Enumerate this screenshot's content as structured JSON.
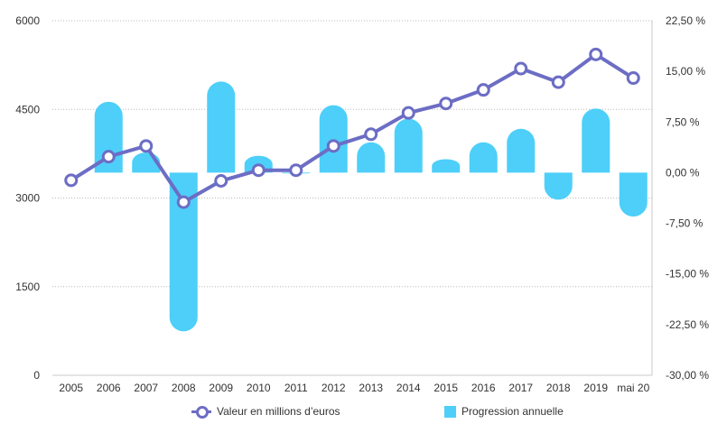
{
  "chart_data": {
    "type": "bar+line",
    "categories": [
      "2005",
      "2006",
      "2007",
      "2008",
      "2009",
      "2010",
      "2011",
      "2012",
      "2013",
      "2014",
      "2015",
      "2016",
      "2017",
      "2018",
      "2019",
      "mai 20"
    ],
    "series": [
      {
        "name": "Valeur en millions d’euros",
        "type": "line",
        "axis": "left",
        "color": "#6c6dc4",
        "values": [
          3300,
          3700,
          3880,
          2930,
          3290,
          3470,
          3470,
          3880,
          4080,
          4440,
          4600,
          4830,
          5190,
          4960,
          5430,
          5030
        ]
      },
      {
        "name": "Progression annuelle",
        "type": "bar",
        "axis": "right",
        "color": "#4dcff9",
        "values": [
          0,
          10.5,
          3.0,
          -23.5,
          13.5,
          2.5,
          -0.1,
          10.0,
          4.5,
          8.0,
          2.0,
          4.5,
          6.5,
          -4.0,
          9.5,
          -6.5
        ]
      }
    ],
    "y_left": {
      "ticks": [
        "0",
        "1500",
        "3000",
        "4500",
        "6000"
      ],
      "ylim": [
        0,
        6000
      ]
    },
    "y_right": {
      "ticks": [
        "-30,00 %",
        "-22,50 %",
        "-15,00 %",
        "-7,50 %",
        "0,00 %",
        "7,50 %",
        "15,00 %",
        "22,50 %"
      ],
      "ylim": [
        -30,
        22.5
      ]
    },
    "grid": true,
    "legend_position": "bottom"
  }
}
